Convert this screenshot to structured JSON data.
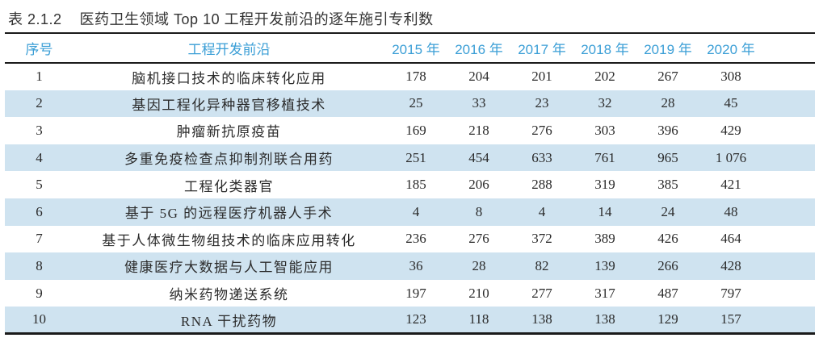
{
  "caption": {
    "table_number": "表 2.1.2",
    "title": "医药卫生领域 Top 10 工程开发前沿的逐年施引专利数"
  },
  "table": {
    "columns": [
      "序号",
      "工程开发前沿",
      "2015 年",
      "2016 年",
      "2017 年",
      "2018 年",
      "2019 年",
      "2020 年"
    ],
    "rows": [
      {
        "no": "1",
        "front": "脑机接口技术的临床转化应用",
        "values": [
          "178",
          "204",
          "201",
          "202",
          "267",
          "308"
        ]
      },
      {
        "no": "2",
        "front": "基因工程化异种器官移植技术",
        "values": [
          "25",
          "33",
          "23",
          "32",
          "28",
          "45"
        ]
      },
      {
        "no": "3",
        "front": "肿瘤新抗原疫苗",
        "values": [
          "169",
          "218",
          "276",
          "303",
          "396",
          "429"
        ]
      },
      {
        "no": "4",
        "front": "多重免疫检查点抑制剂联合用药",
        "values": [
          "251",
          "454",
          "633",
          "761",
          "965",
          "1 076"
        ]
      },
      {
        "no": "5",
        "front": "工程化类器官",
        "values": [
          "185",
          "206",
          "288",
          "319",
          "385",
          "421"
        ]
      },
      {
        "no": "6",
        "front": "基于 5G 的远程医疗机器人手术",
        "values": [
          "4",
          "8",
          "4",
          "14",
          "24",
          "48"
        ]
      },
      {
        "no": "7",
        "front": "基于人体微生物组技术的临床应用转化",
        "values": [
          "236",
          "276",
          "372",
          "389",
          "426",
          "464"
        ]
      },
      {
        "no": "8",
        "front": "健康医疗大数据与人工智能应用",
        "values": [
          "36",
          "28",
          "82",
          "139",
          "266",
          "428"
        ]
      },
      {
        "no": "9",
        "front": "纳米药物递送系统",
        "values": [
          "197",
          "210",
          "277",
          "317",
          "487",
          "797"
        ]
      },
      {
        "no": "10",
        "front": "RNA 干扰药物",
        "values": [
          "123",
          "118",
          "138",
          "138",
          "129",
          "157"
        ]
      }
    ]
  },
  "colors": {
    "header_text": "#3a9ed6",
    "row_shade": "#cfe3f0",
    "rule": "#1a1a1a",
    "body_text": "#2b2b2b",
    "title_text": "#333333",
    "page_bg": "#ffffff"
  }
}
